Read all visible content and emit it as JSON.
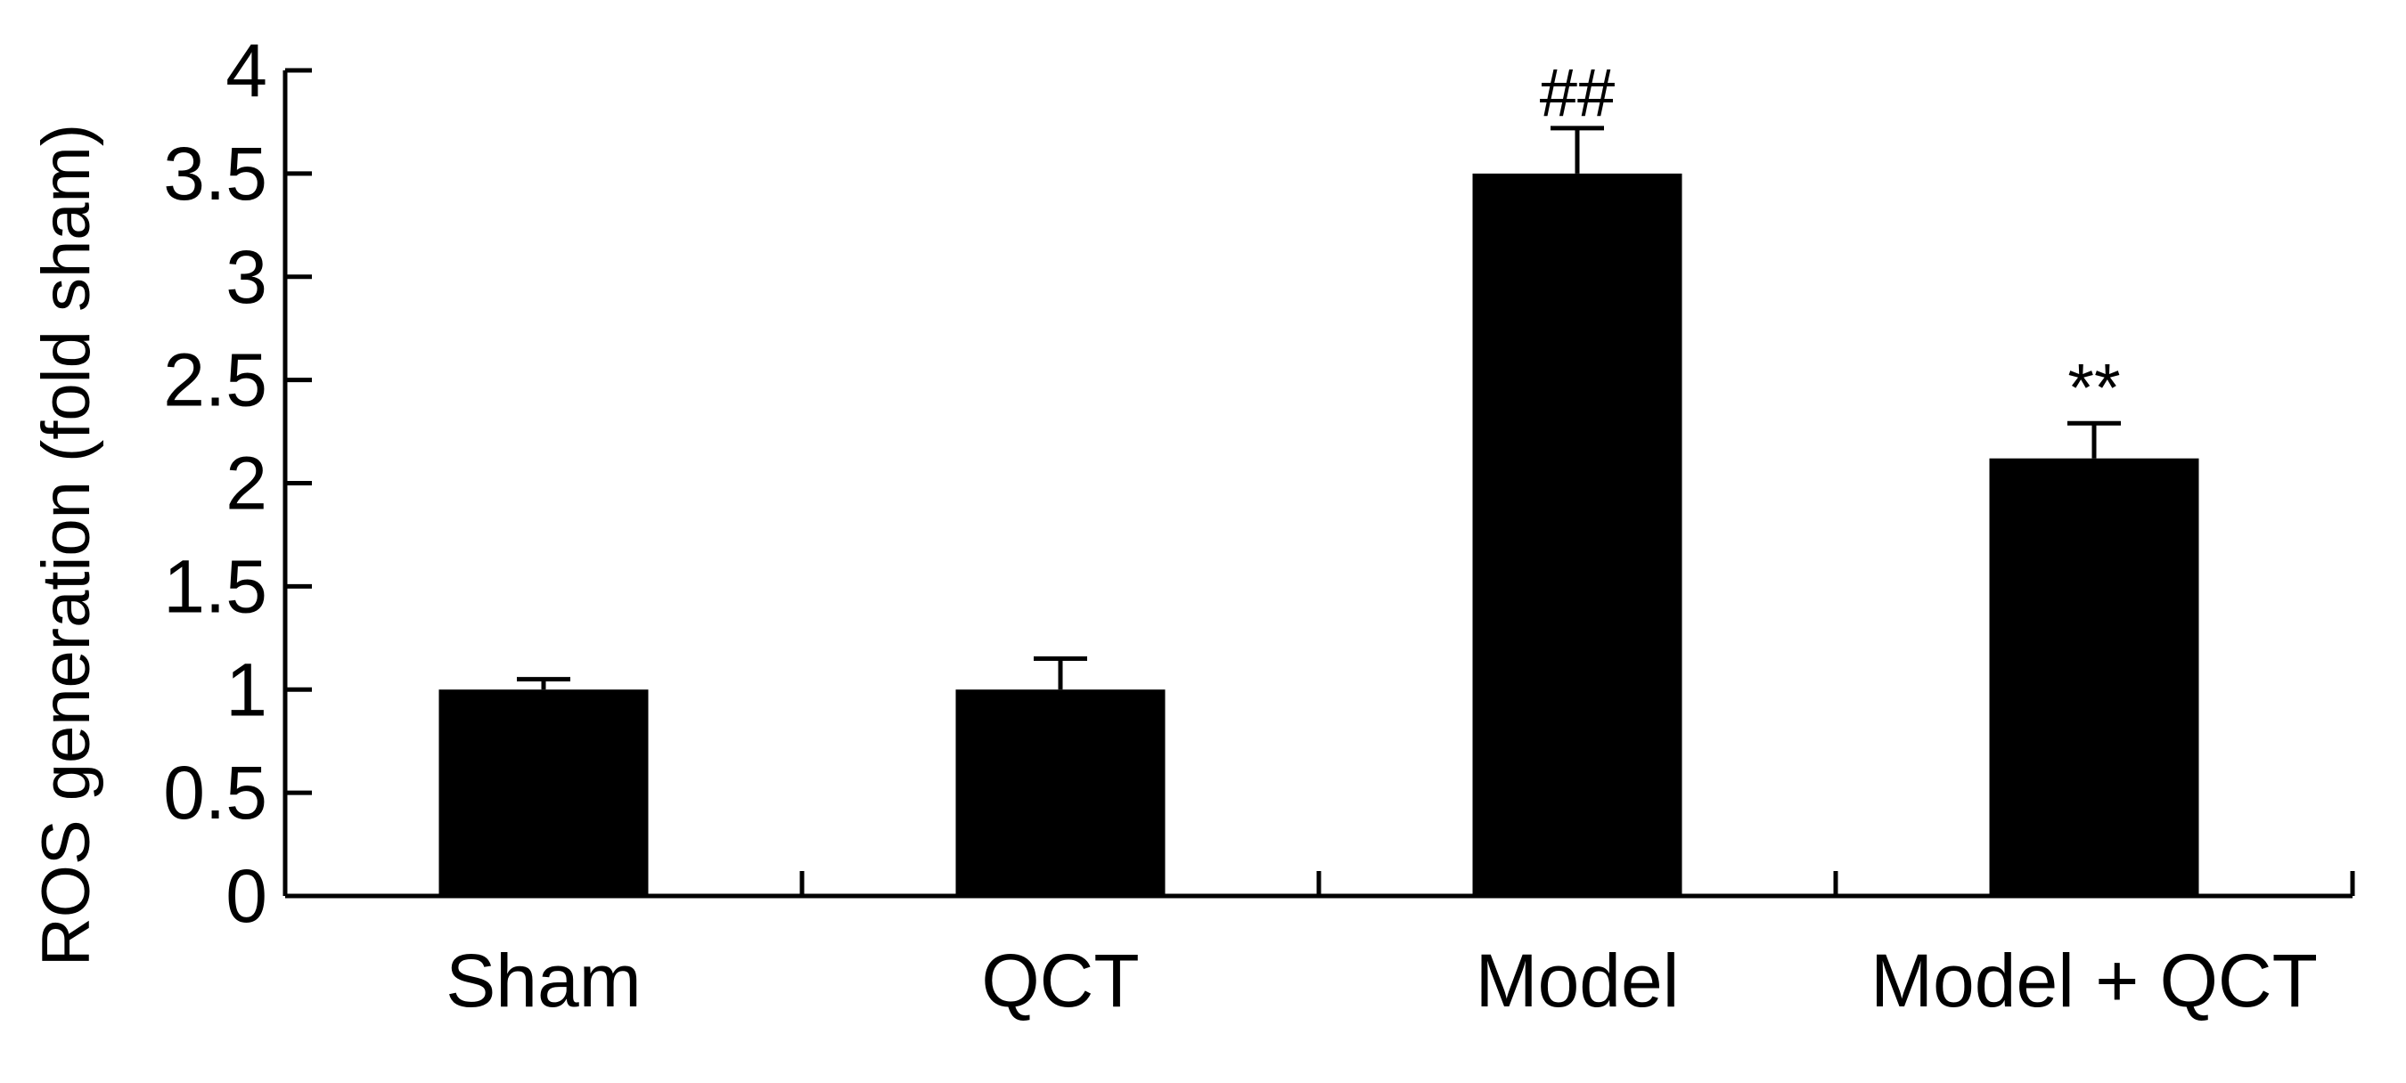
{
  "chart_data": {
    "type": "bar",
    "title": "",
    "xlabel": "",
    "ylabel": "ROS generation (fold sham)",
    "ylim": [
      0,
      4
    ],
    "yticks": [
      0,
      0.5,
      1,
      1.5,
      2,
      2.5,
      3,
      3.5,
      4
    ],
    "ytick_labels": [
      "0",
      "0.5",
      "1",
      "1.5",
      "2",
      "2.5",
      "3",
      "3.5",
      "4"
    ],
    "categories": [
      "Sham",
      "QCT",
      "Model",
      "Model + QCT"
    ],
    "values": [
      1.0,
      1.0,
      3.5,
      2.12
    ],
    "error_upper": [
      0.05,
      0.15,
      0.22,
      0.17
    ],
    "annotations": [
      "",
      "",
      "##",
      "**"
    ],
    "bar_color": "#000000",
    "grid": false,
    "legend": "none"
  }
}
